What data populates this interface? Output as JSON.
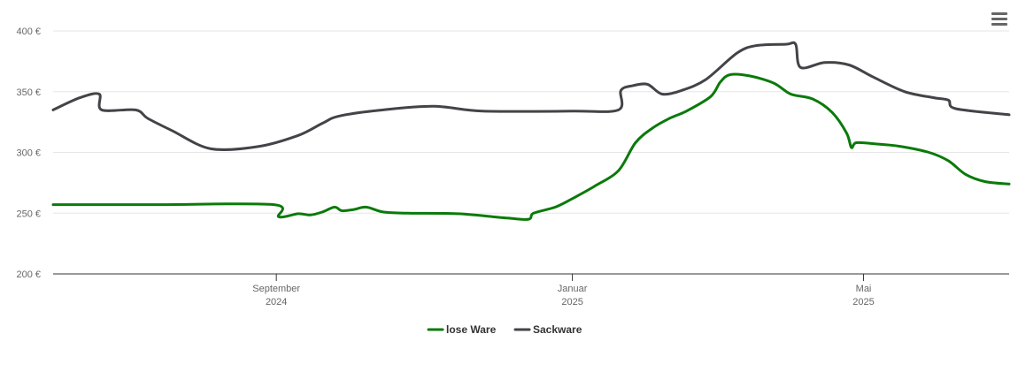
{
  "chart_data": {
    "type": "line",
    "y_ticks": [
      {
        "value": 200,
        "label": "200 €"
      },
      {
        "value": 250,
        "label": "250 €"
      },
      {
        "value": 300,
        "label": "300 €"
      },
      {
        "value": 350,
        "label": "350 €"
      },
      {
        "value": 400,
        "label": "400 €"
      }
    ],
    "ylim": [
      200,
      400
    ],
    "xlim": [
      "2024-06-01",
      "2025-06-30"
    ],
    "x_ticks": [
      {
        "date": "2024-09-01",
        "line1": "September",
        "line2": "2024"
      },
      {
        "date": "2025-01-01",
        "line1": "Januar",
        "line2": "2025"
      },
      {
        "date": "2025-05-01",
        "line1": "Mai",
        "line2": "2025"
      }
    ],
    "grid": true,
    "legend_position": "bottom-center",
    "series": [
      {
        "name": "lose Ware",
        "color": "#0a7a0a",
        "points": [
          [
            "2024-06-01",
            257
          ],
          [
            "2024-07-15",
            257
          ],
          [
            "2024-08-31",
            257
          ],
          [
            "2024-09-02",
            247
          ],
          [
            "2024-09-10",
            249.5
          ],
          [
            "2024-09-15",
            248.5
          ],
          [
            "2024-09-20",
            251
          ],
          [
            "2024-09-25",
            255
          ],
          [
            "2024-09-28",
            252
          ],
          [
            "2024-10-03",
            253
          ],
          [
            "2024-10-08",
            255
          ],
          [
            "2024-10-15",
            251
          ],
          [
            "2024-10-25",
            250
          ],
          [
            "2024-11-15",
            249.5
          ],
          [
            "2024-12-05",
            246
          ],
          [
            "2024-12-14",
            245
          ],
          [
            "2024-12-16",
            250
          ],
          [
            "2024-12-25",
            255
          ],
          [
            "2025-01-01",
            262
          ],
          [
            "2025-01-10",
            272
          ],
          [
            "2025-01-20",
            285
          ],
          [
            "2025-01-27",
            308
          ],
          [
            "2025-02-03",
            320
          ],
          [
            "2025-02-10",
            328
          ],
          [
            "2025-02-17",
            334
          ],
          [
            "2025-02-27",
            346
          ],
          [
            "2025-03-03",
            358
          ],
          [
            "2025-03-07",
            364
          ],
          [
            "2025-03-15",
            363
          ],
          [
            "2025-03-25",
            357
          ],
          [
            "2025-04-01",
            348
          ],
          [
            "2025-04-10",
            344
          ],
          [
            "2025-04-18",
            333
          ],
          [
            "2025-04-24",
            316
          ],
          [
            "2025-04-26",
            304
          ],
          [
            "2025-04-28",
            308
          ],
          [
            "2025-05-06",
            307
          ],
          [
            "2025-05-16",
            305
          ],
          [
            "2025-05-28",
            300
          ],
          [
            "2025-06-05",
            293
          ],
          [
            "2025-06-12",
            282
          ],
          [
            "2025-06-20",
            276
          ],
          [
            "2025-06-30",
            274
          ]
        ]
      },
      {
        "name": "Sackware",
        "color": "#434348",
        "points": [
          [
            "2024-06-01",
            335
          ],
          [
            "2024-06-12",
            345
          ],
          [
            "2024-06-20",
            348
          ],
          [
            "2024-06-21",
            335
          ],
          [
            "2024-07-05",
            335
          ],
          [
            "2024-07-10",
            328
          ],
          [
            "2024-07-20",
            318
          ],
          [
            "2024-08-05",
            303
          ],
          [
            "2024-08-25",
            305
          ],
          [
            "2024-09-10",
            314
          ],
          [
            "2024-09-20",
            324
          ],
          [
            "2024-09-27",
            330
          ],
          [
            "2024-10-15",
            335
          ],
          [
            "2024-11-05",
            338
          ],
          [
            "2024-11-25",
            334
          ],
          [
            "2025-01-01",
            334
          ],
          [
            "2025-01-20",
            335
          ],
          [
            "2025-01-21",
            351
          ],
          [
            "2025-01-26",
            355
          ],
          [
            "2025-02-01",
            356
          ],
          [
            "2025-02-07",
            348
          ],
          [
            "2025-02-15",
            351
          ],
          [
            "2025-02-25",
            360
          ],
          [
            "2025-03-10",
            382
          ],
          [
            "2025-03-18",
            388
          ],
          [
            "2025-03-30",
            389
          ],
          [
            "2025-04-03",
            389
          ],
          [
            "2025-04-05",
            370
          ],
          [
            "2025-04-15",
            374
          ],
          [
            "2025-04-25",
            372
          ],
          [
            "2025-05-05",
            362
          ],
          [
            "2025-05-18",
            350
          ],
          [
            "2025-05-30",
            345
          ],
          [
            "2025-06-05",
            343
          ],
          [
            "2025-06-08",
            336
          ],
          [
            "2025-06-30",
            331
          ]
        ]
      }
    ]
  },
  "menu": {
    "icon": "hamburger-menu-icon"
  }
}
